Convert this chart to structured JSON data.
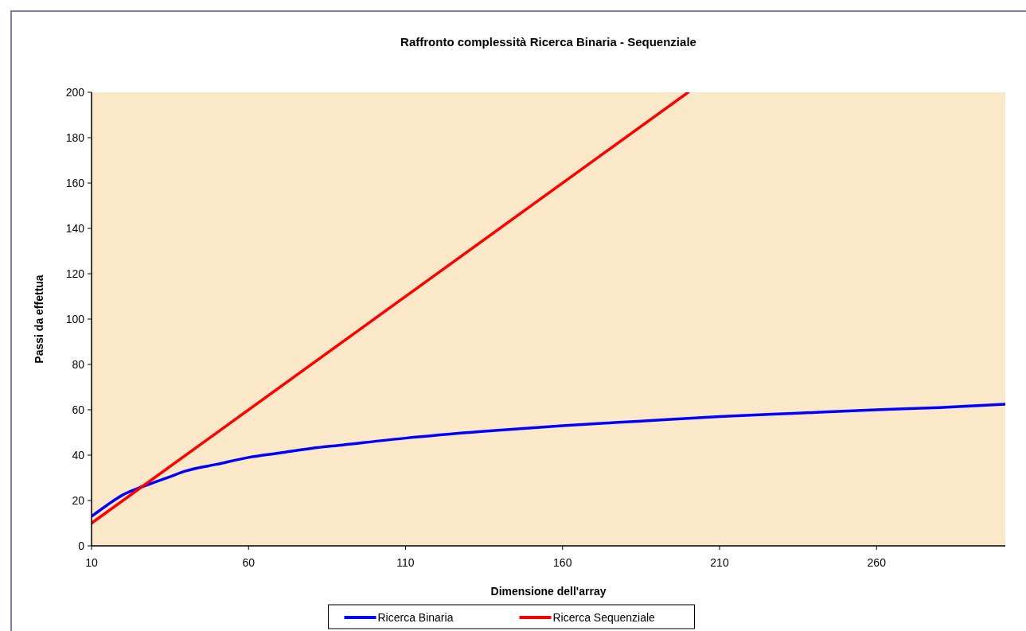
{
  "chart_data": {
    "type": "line",
    "title": "Raffronto complessità Ricerca Binaria - Sequenziale",
    "xlabel": "Dimensione dell'array",
    "ylabel": "Passi da effettua",
    "xlim": [
      10,
      301
    ],
    "xticks": [
      10,
      60,
      110,
      160,
      210,
      260
    ],
    "ylim": [
      0,
      200
    ],
    "yticks": [
      0,
      20,
      40,
      60,
      80,
      100,
      120,
      140,
      160,
      180,
      200
    ],
    "grid": false,
    "legend": "bottom",
    "marker": "none",
    "line_style": "solid",
    "series": [
      {
        "name": "Ricerca Binaria",
        "color": "#0000ff",
        "x": [
          10,
          15,
          20,
          25,
          30,
          35,
          40,
          50,
          60,
          70,
          80,
          90,
          110,
          135,
          160,
          185,
          210,
          235,
          260,
          280,
          301
        ],
        "values": [
          13,
          18,
          22.5,
          25.5,
          28,
          30.5,
          33,
          36,
          39,
          41,
          43,
          44.5,
          47.5,
          50.5,
          53,
          55,
          57,
          58.5,
          60,
          61,
          62.5
        ]
      },
      {
        "name": "Ricerca Sequenziale",
        "color": "#ff0000",
        "x": [
          10,
          200
        ],
        "values": [
          10,
          200
        ]
      }
    ]
  }
}
